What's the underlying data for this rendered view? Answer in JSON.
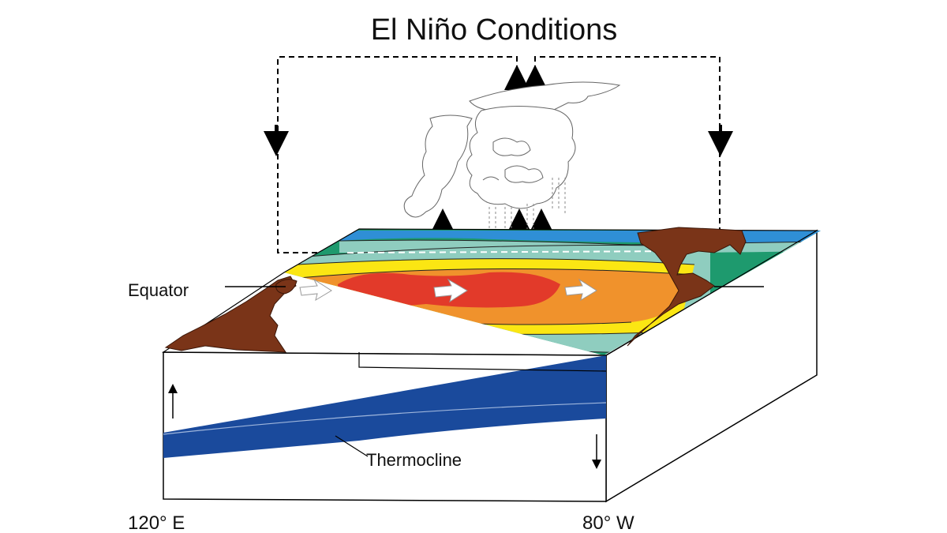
{
  "title": "El Niño Conditions",
  "labels": {
    "equator": "Equator",
    "thermocline": "Thermocline",
    "west_longitude": "120° E",
    "east_longitude": "80° W"
  },
  "colors": {
    "land": "#7a3418",
    "warm_core": "#e23a2a",
    "warm": "#f0922c",
    "mild": "#fbe613",
    "cool": "#8fcdbf",
    "cold": "#1e9a6e",
    "surface_blue": "#2f8fd6",
    "thermocline_layer": "#1a4a9c"
  }
}
